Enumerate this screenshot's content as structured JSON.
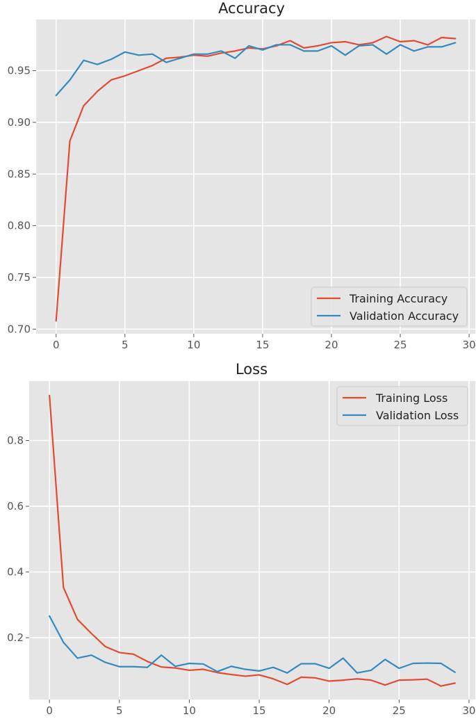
{
  "chart_data": [
    {
      "type": "line",
      "title": "Accuracy",
      "xlabel": "",
      "ylabel": "",
      "xlim": [
        -1.45,
        30.45
      ],
      "ylim": [
        0.6955,
        0.9995
      ],
      "xticks": [
        0,
        5,
        10,
        15,
        20,
        25,
        30
      ],
      "yticks": [
        0.7,
        0.75,
        0.8,
        0.85,
        0.9,
        0.95
      ],
      "grid": true,
      "legend_position": "lower right",
      "x": [
        0,
        1,
        2,
        3,
        4,
        5,
        6,
        7,
        8,
        9,
        10,
        11,
        12,
        13,
        14,
        15,
        16,
        17,
        18,
        19,
        20,
        21,
        22,
        23,
        24,
        25,
        26,
        27,
        28,
        29
      ],
      "series": [
        {
          "name": "Training Accuracy",
          "color": "#E24A33",
          "values": [
            0.708,
            0.882,
            0.916,
            0.93,
            0.941,
            0.945,
            0.95,
            0.955,
            0.962,
            0.963,
            0.965,
            0.964,
            0.967,
            0.969,
            0.972,
            0.971,
            0.974,
            0.979,
            0.972,
            0.974,
            0.977,
            0.978,
            0.975,
            0.977,
            0.983,
            0.978,
            0.979,
            0.975,
            0.982,
            0.981
          ]
        },
        {
          "name": "Validation Accuracy",
          "color": "#348ABD",
          "values": [
            0.926,
            0.941,
            0.96,
            0.956,
            0.961,
            0.968,
            0.965,
            0.966,
            0.958,
            0.962,
            0.966,
            0.966,
            0.969,
            0.962,
            0.974,
            0.97,
            0.975,
            0.975,
            0.969,
            0.969,
            0.974,
            0.965,
            0.974,
            0.975,
            0.966,
            0.975,
            0.969,
            0.973,
            0.973,
            0.977
          ]
        }
      ]
    },
    {
      "type": "line",
      "title": "Loss",
      "xlabel": "",
      "ylabel": "",
      "xlim": [
        -1.45,
        30.45
      ],
      "ylim": [
        0.012,
        0.981
      ],
      "xticks": [
        0,
        5,
        10,
        15,
        20,
        25,
        30
      ],
      "yticks": [
        0.2,
        0.4,
        0.6,
        0.8
      ],
      "grid": true,
      "legend_position": "upper right",
      "x": [
        0,
        1,
        2,
        3,
        4,
        5,
        6,
        7,
        8,
        9,
        10,
        11,
        12,
        13,
        14,
        15,
        16,
        17,
        18,
        19,
        20,
        21,
        22,
        23,
        24,
        25,
        26,
        27,
        28,
        29
      ],
      "series": [
        {
          "name": "Training Loss",
          "color": "#E24A33",
          "values": [
            0.937,
            0.353,
            0.256,
            0.213,
            0.173,
            0.155,
            0.15,
            0.128,
            0.111,
            0.108,
            0.101,
            0.104,
            0.094,
            0.088,
            0.083,
            0.087,
            0.075,
            0.058,
            0.08,
            0.078,
            0.068,
            0.071,
            0.075,
            0.071,
            0.056,
            0.071,
            0.072,
            0.074,
            0.053,
            0.062
          ]
        },
        {
          "name": "Validation Loss",
          "color": "#348ABD",
          "values": [
            0.266,
            0.186,
            0.138,
            0.147,
            0.125,
            0.112,
            0.112,
            0.11,
            0.147,
            0.113,
            0.122,
            0.12,
            0.097,
            0.113,
            0.104,
            0.099,
            0.11,
            0.093,
            0.121,
            0.121,
            0.107,
            0.138,
            0.093,
            0.101,
            0.134,
            0.107,
            0.122,
            0.123,
            0.122,
            0.095
          ]
        }
      ]
    }
  ]
}
